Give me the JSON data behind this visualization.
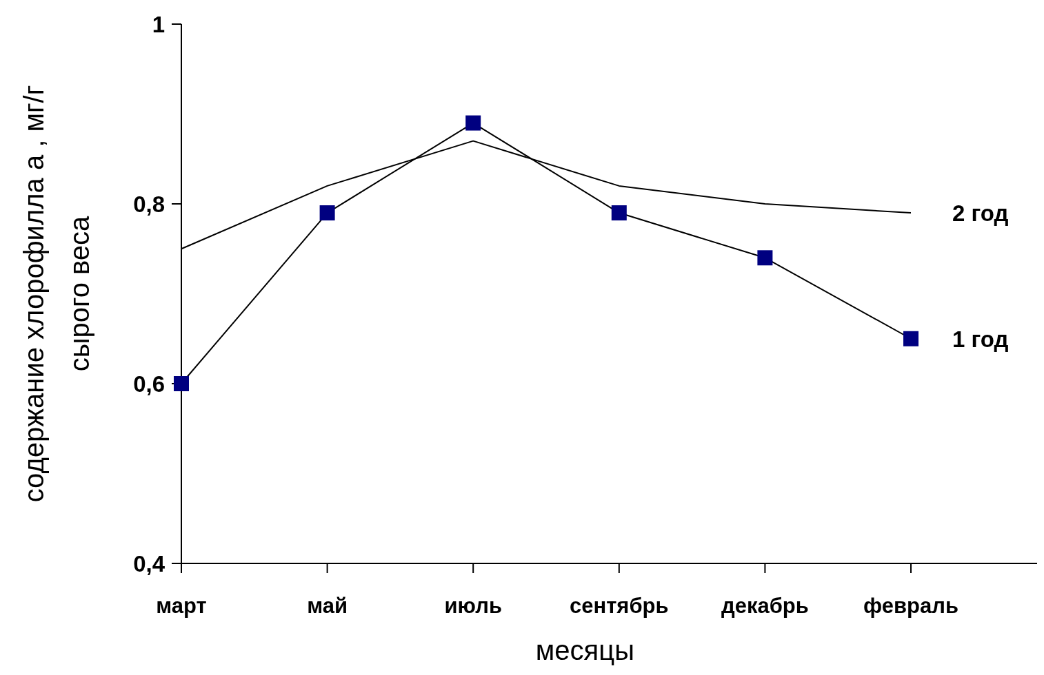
{
  "chart_data": {
    "type": "line",
    "xlabel": "месяцы",
    "ylabel": "содержание хлорофилла а , мг/г\nсырого веса",
    "categories": [
      "март",
      "май",
      "июль",
      "сентябрь",
      "декабрь",
      "февраль"
    ],
    "series": [
      {
        "name": "2 год",
        "color": "#000000",
        "marker": "none",
        "values": [
          0.75,
          0.82,
          0.87,
          0.82,
          0.8,
          0.79
        ]
      },
      {
        "name": "1 год",
        "color": "#000080",
        "marker": "square",
        "values": [
          0.6,
          0.79,
          0.89,
          0.79,
          0.74,
          0.65
        ]
      }
    ],
    "ylim": [
      0.4,
      1
    ],
    "yticks": [
      {
        "value": 0.4,
        "label": "0,4"
      },
      {
        "value": 0.6,
        "label": "0,6"
      },
      {
        "value": 0.8,
        "label": "0,8"
      },
      1
    ],
    "grid": false,
    "legend": "right"
  }
}
